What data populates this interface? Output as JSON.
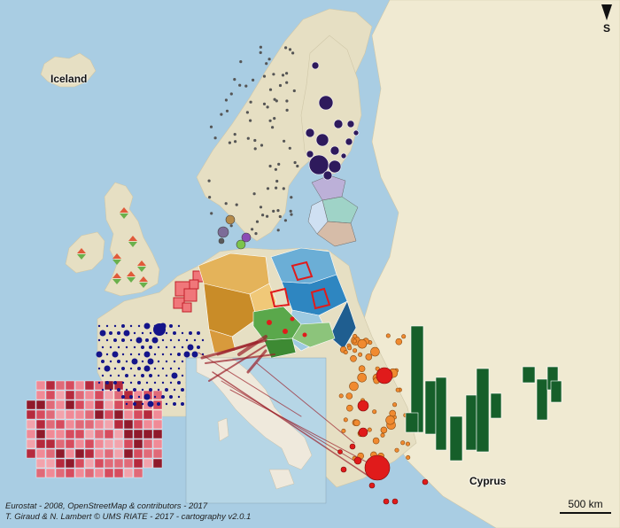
{
  "map": {
    "labels": {
      "iceland": "Iceland",
      "cyprus": "Cyprus"
    },
    "north_arrow": "S",
    "scale_bar": "500 km",
    "credits": {
      "line1": "Eurostat - 2008, OpenStreetMap & contributors - 2017",
      "line2": "T. Giraud & N. Lambert © UMS RIATE - 2017 - cartography v2.0.1"
    }
  },
  "colors": {
    "sea": "#a9cde3",
    "land_eu": "#e6dfc3",
    "land_other": "#f0ead2",
    "spain_grid": "#d64c5e",
    "france_dots": "#14148a",
    "benelux_squares": "#f0777a",
    "germany_choropleth": "#d89a3c",
    "poland_choropleth": "#2e86c1",
    "central_typology": "#5aa84b",
    "propsymb_north": "#2e1a5c",
    "balkans_circles": "#f08a30",
    "greece_circles": "#e01b1b",
    "turkey_bars": "#165f2a",
    "flows": "#9b1f2a"
  }
}
